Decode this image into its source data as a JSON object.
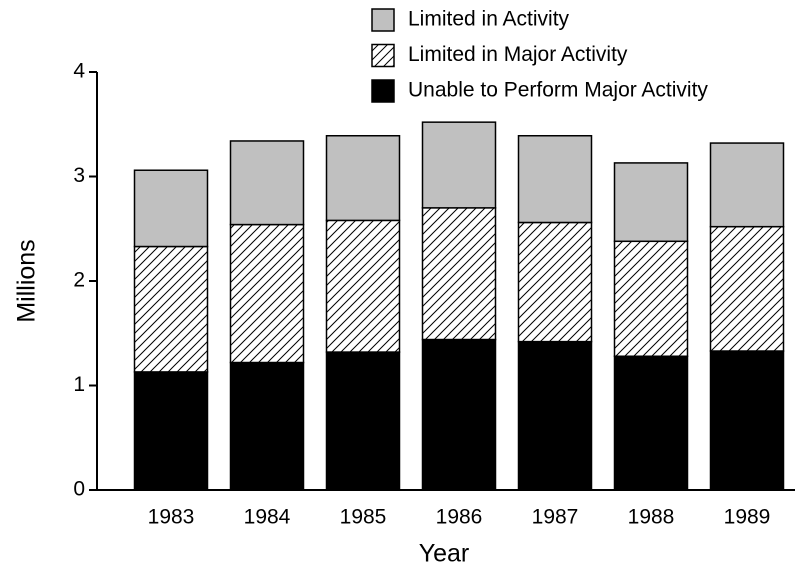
{
  "chart_data": {
    "type": "stacked_bar",
    "x_label": "Year",
    "y_label": "Millions",
    "categories": [
      "1983",
      "1984",
      "1985",
      "1986",
      "1987",
      "1988",
      "1989"
    ],
    "series": [
      {
        "name": "Unable to Perform Major Activity",
        "color": "#000000",
        "values": [
          1.13,
          1.22,
          1.32,
          1.44,
          1.42,
          1.28,
          1.33
        ]
      },
      {
        "name": "Limited in Major Activity",
        "color": "#ffffff",
        "hatch": true,
        "values": [
          1.2,
          1.32,
          1.26,
          1.26,
          1.14,
          1.1,
          1.19
        ]
      },
      {
        "name": "Limited in Activity",
        "color": "#c0c0c0",
        "values": [
          0.73,
          0.8,
          0.81,
          0.82,
          0.83,
          0.75,
          0.8
        ]
      }
    ],
    "ylim": [
      0,
      4
    ],
    "yticks": [
      0,
      1,
      2,
      3,
      4
    ],
    "grid": false
  }
}
